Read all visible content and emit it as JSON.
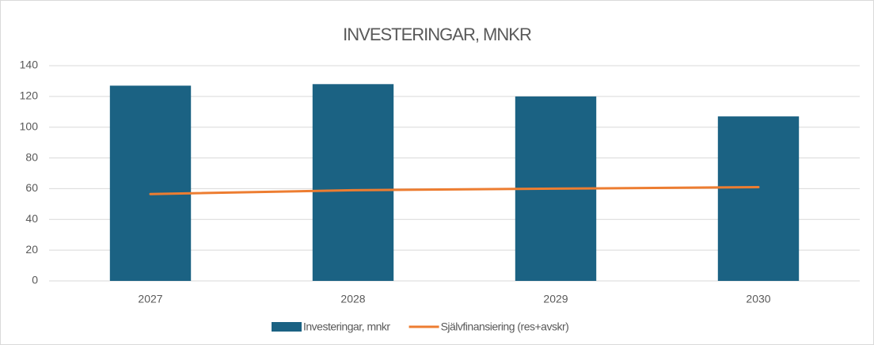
{
  "chart_data": {
    "type": "bar",
    "title": "INVESTERINGAR, MNKR",
    "categories": [
      "2027",
      "2028",
      "2029",
      "2030"
    ],
    "series": [
      {
        "name": "Investeringar, mnkr",
        "type": "bar",
        "color": "#1b6283",
        "values": [
          127,
          128,
          120,
          107
        ]
      },
      {
        "name": "Självfinansiering (res+avskr)",
        "type": "line",
        "color": "#ed7d31",
        "values": [
          56.5,
          59,
          60,
          61
        ]
      }
    ],
    "ylim": [
      0,
      140
    ],
    "yticks": [
      0,
      20,
      40,
      60,
      80,
      100,
      120,
      140
    ],
    "grid": true,
    "legend": "bottom"
  }
}
